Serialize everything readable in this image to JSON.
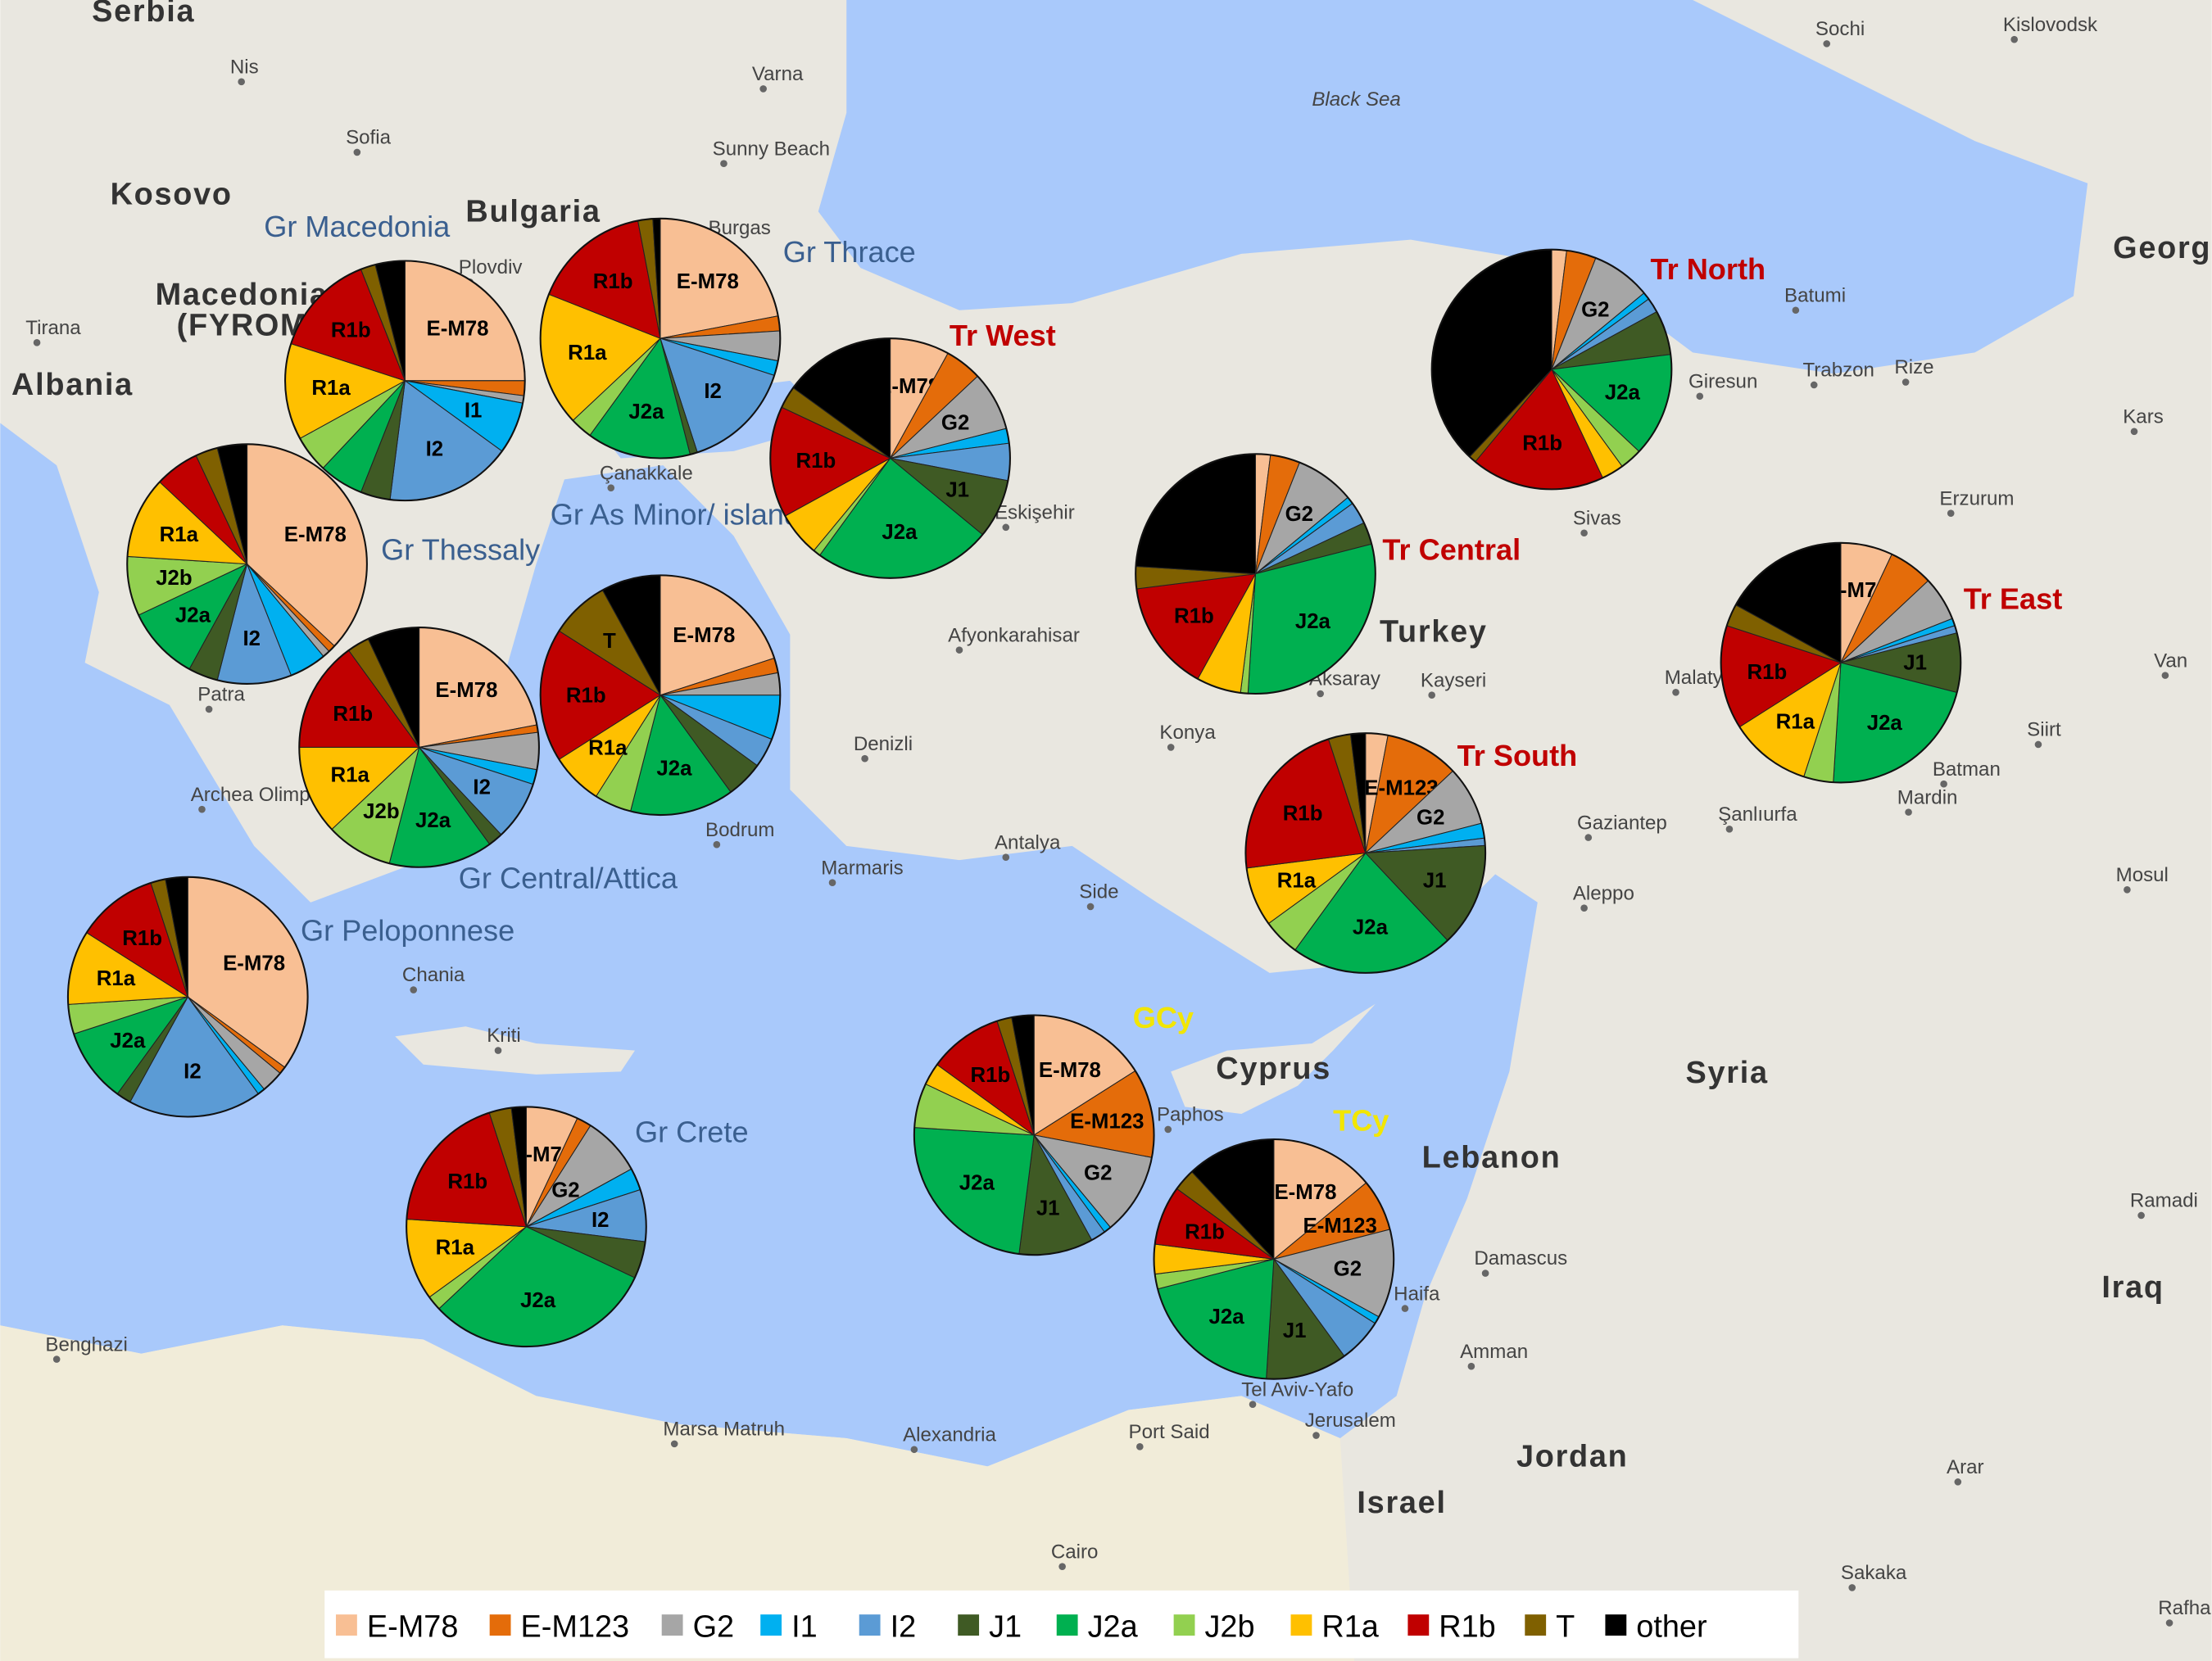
{
  "map": {
    "sea_label": "Black Sea",
    "countries": [
      "Serbia",
      "Bulgaria",
      "Kosovo",
      "Albania",
      "Macedonia (FYROM)",
      "Turkey",
      "Syria",
      "Lebanon",
      "Israel",
      "Jordan",
      "Iraq",
      "Georgia",
      "Cyprus"
    ],
    "places": [
      "Nis",
      "Sofia",
      "Varna",
      "Sunny Beach",
      "Burgas",
      "Tirana",
      "Plovdiv",
      "Çanakkale",
      "Eskişehir",
      "Afyonkarahisar",
      "Denizli",
      "Konya",
      "Antalya",
      "Bodrum",
      "Marmaris",
      "Side",
      "Aksaray",
      "Kayseri",
      "Sivas",
      "Erzurum",
      "Giresun",
      "Trabzon",
      "Rize",
      "Batumi",
      "Kars",
      "Sochi",
      "Kislovodsk",
      "Malatya",
      "Siirt",
      "Batman",
      "Mardin",
      "Gaziantep",
      "Şanlıurfa",
      "Aleppo",
      "Mosul",
      "Van",
      "Patra",
      "Archea Olimpia",
      "Chania",
      "Kriti",
      "Paphos",
      "Haifa",
      "Damascus",
      "Amman",
      "Tel Aviv-Yafo",
      "Jerusalem",
      "Benghazi",
      "Marsa Matruh",
      "Alexandria",
      "Port Said",
      "Cairo",
      "Sakaka",
      "Arar",
      "Ramadi",
      "Rafha"
    ],
    "colors": {
      "sea": "#a9c9fb",
      "land": "#e9e7e0",
      "greek_label": "#3a5f8f",
      "turkish_label": "#c00000",
      "cyprus_label": "#f2e600"
    }
  },
  "legend": [
    {
      "label": "E-M78",
      "color": "#f8bf94"
    },
    {
      "label": "E-M123",
      "color": "#e46c0a"
    },
    {
      "label": "G2",
      "color": "#a6a6a6"
    },
    {
      "label": "I1",
      "color": "#00b0f0"
    },
    {
      "label": "I2",
      "color": "#5b9bd5"
    },
    {
      "label": "J1",
      "color": "#3f5a24"
    },
    {
      "label": "J2a",
      "color": "#00b050"
    },
    {
      "label": "J2b",
      "color": "#92d050"
    },
    {
      "label": "R1a",
      "color": "#ffc000"
    },
    {
      "label": "R1b",
      "color": "#c00000"
    },
    {
      "label": "T",
      "color": "#7f6000"
    },
    {
      "label": "other",
      "color": "#000000"
    }
  ],
  "chart_data": {
    "type": "pie",
    "unit": "percent",
    "categories": [
      "E-M78",
      "E-M123",
      "G2",
      "I1",
      "I2",
      "J1",
      "J2a",
      "J2b",
      "R1a",
      "R1b",
      "T",
      "other"
    ],
    "pies": [
      {
        "name": "Gr Macedonia",
        "group": "greek",
        "values": [
          25,
          2,
          1,
          7,
          17,
          4,
          6,
          5,
          13,
          14,
          2,
          4
        ]
      },
      {
        "name": "Gr Thrace",
        "group": "greek",
        "values": [
          22,
          2,
          4,
          2,
          15,
          1,
          14,
          3,
          18,
          16,
          2,
          1
        ]
      },
      {
        "name": "Gr Thessaly",
        "group": "greek",
        "values": [
          37,
          1,
          1,
          5,
          10,
          4,
          10,
          8,
          11,
          6,
          3,
          4
        ]
      },
      {
        "name": "Gr As Minor/ islands",
        "group": "greek",
        "values": [
          20,
          2,
          3,
          6,
          4,
          5,
          14,
          5,
          7,
          18,
          8,
          8
        ]
      },
      {
        "name": "Gr Central/Attica",
        "group": "greek",
        "values": [
          22,
          1,
          5,
          2,
          8,
          2,
          14,
          9,
          12,
          15,
          3,
          7
        ]
      },
      {
        "name": "Gr Peloponnese",
        "group": "greek",
        "values": [
          35,
          1,
          3,
          1,
          18,
          2,
          10,
          4,
          10,
          11,
          2,
          3
        ]
      },
      {
        "name": "Gr Crete",
        "group": "greek",
        "values": [
          7,
          2,
          8,
          3,
          7,
          5,
          31,
          2,
          11,
          19,
          3,
          2
        ]
      },
      {
        "name": "Tr West",
        "group": "turkish",
        "values": [
          8,
          5,
          8,
          2,
          5,
          8,
          24,
          1,
          6,
          15,
          3,
          15
        ]
      },
      {
        "name": "Tr North",
        "group": "turkish",
        "values": [
          2,
          4,
          8,
          1,
          2,
          6,
          14,
          3,
          3,
          18,
          1,
          38
        ]
      },
      {
        "name": "Tr Central",
        "group": "turkish",
        "values": [
          2,
          4,
          8,
          1,
          3,
          3,
          30,
          1,
          6,
          15,
          3,
          24
        ]
      },
      {
        "name": "Tr East",
        "group": "turkish",
        "values": [
          7,
          6,
          6,
          1,
          1,
          8,
          22,
          4,
          11,
          14,
          3,
          17
        ]
      },
      {
        "name": "Tr South",
        "group": "turkish",
        "values": [
          3,
          10,
          8,
          2,
          1,
          14,
          22,
          5,
          8,
          22,
          3,
          2
        ]
      },
      {
        "name": "GCy",
        "group": "cyprus",
        "values": [
          16,
          12,
          11,
          1,
          2,
          10,
          24,
          6,
          3,
          10,
          2,
          3
        ]
      },
      {
        "name": "TCy",
        "group": "cyprus",
        "values": [
          14,
          7,
          12,
          1,
          6,
          11,
          20,
          2,
          4,
          8,
          3,
          12
        ]
      }
    ]
  }
}
